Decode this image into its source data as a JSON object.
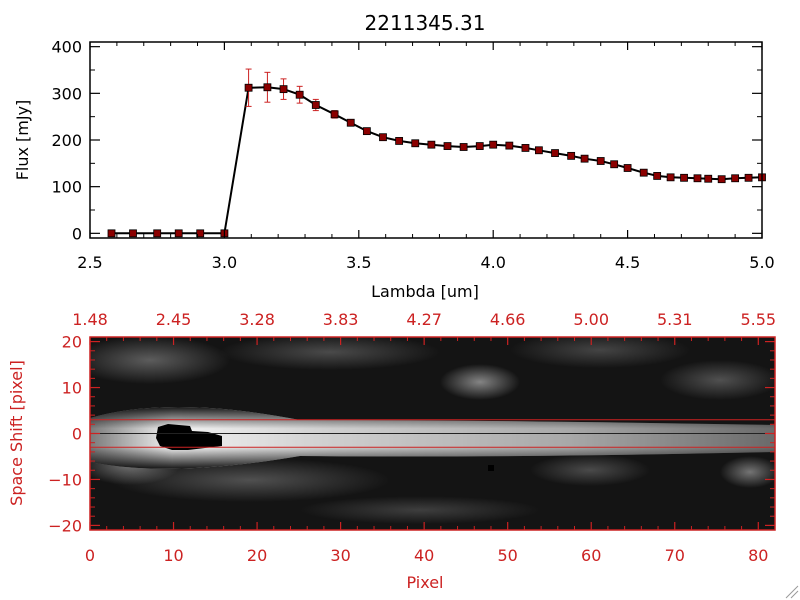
{
  "chart_data": [
    {
      "type": "line",
      "title": "2211345.31",
      "xlabel": "Lambda [um]",
      "ylabel": "Flux [mJy]",
      "xlim": [
        2.5,
        5.0
      ],
      "ylim": [
        -10,
        410
      ],
      "xticks": [
        2.5,
        3.0,
        3.5,
        4.0,
        4.5,
        5.0
      ],
      "xtick_labels": [
        "2.5",
        "3.0",
        "3.5",
        "4.0",
        "4.5",
        "5.0"
      ],
      "yticks": [
        0,
        100,
        200,
        300,
        400
      ],
      "ytick_labels": [
        "0",
        "100",
        "200",
        "300",
        "400"
      ],
      "grid": false,
      "line_color": "#000000",
      "marker_color": "#8b0000",
      "errorbar_color": "#cc2222",
      "x": [
        2.58,
        2.66,
        2.75,
        2.83,
        2.91,
        3.0,
        3.09,
        3.16,
        3.22,
        3.28,
        3.34,
        3.41,
        3.47,
        3.53,
        3.59,
        3.65,
        3.71,
        3.77,
        3.83,
        3.89,
        3.95,
        4.0,
        4.06,
        4.12,
        4.17,
        4.23,
        4.29,
        4.34,
        4.4,
        4.45,
        4.5,
        4.56,
        4.61,
        4.66,
        4.71,
        4.76,
        4.8,
        4.85,
        4.9,
        4.95,
        5.0
      ],
      "y": [
        0,
        0,
        0,
        0,
        0,
        0,
        312,
        313,
        309,
        297,
        275,
        255,
        237,
        219,
        206,
        198,
        193,
        190,
        187,
        185,
        187,
        190,
        188,
        183,
        178,
        172,
        166,
        160,
        155,
        148,
        140,
        130,
        123,
        120,
        119,
        118,
        117,
        116,
        118,
        119,
        120
      ],
      "yerr": [
        0,
        0,
        0,
        0,
        0,
        0,
        40,
        32,
        22,
        18,
        12,
        8,
        6,
        5,
        4,
        4,
        3,
        3,
        3,
        3,
        3,
        4,
        4,
        3,
        3,
        3,
        3,
        3,
        3,
        3,
        3,
        3,
        3,
        3,
        3,
        3,
        3,
        3,
        3,
        4,
        5
      ]
    },
    {
      "type": "heatmap",
      "xlabel": "Pixel",
      "ylabel": "Space Shift [pixel]",
      "xlim": [
        0,
        82
      ],
      "ylim": [
        -21,
        21
      ],
      "xticks": [
        0,
        10,
        20,
        30,
        40,
        50,
        60,
        70,
        80
      ],
      "xtick_labels": [
        "0",
        "10",
        "20",
        "30",
        "40",
        "50",
        "60",
        "70",
        "80"
      ],
      "yticks": [
        -20,
        -10,
        0,
        10,
        20
      ],
      "ytick_labels": [
        "−20",
        "−10",
        "0",
        "10",
        "20"
      ],
      "top_ticks": [
        0,
        10,
        20,
        30,
        40,
        50,
        60,
        70,
        80
      ],
      "top_tick_labels": [
        "1.48",
        "2.45",
        "3.28",
        "3.83",
        "4.27",
        "4.66",
        "5.00",
        "5.31",
        "5.55"
      ],
      "axis_color": "#cc2222",
      "aperture_lines_y": [
        3,
        -3
      ],
      "center_line_y": 0,
      "colormap": "grayscale"
    }
  ]
}
